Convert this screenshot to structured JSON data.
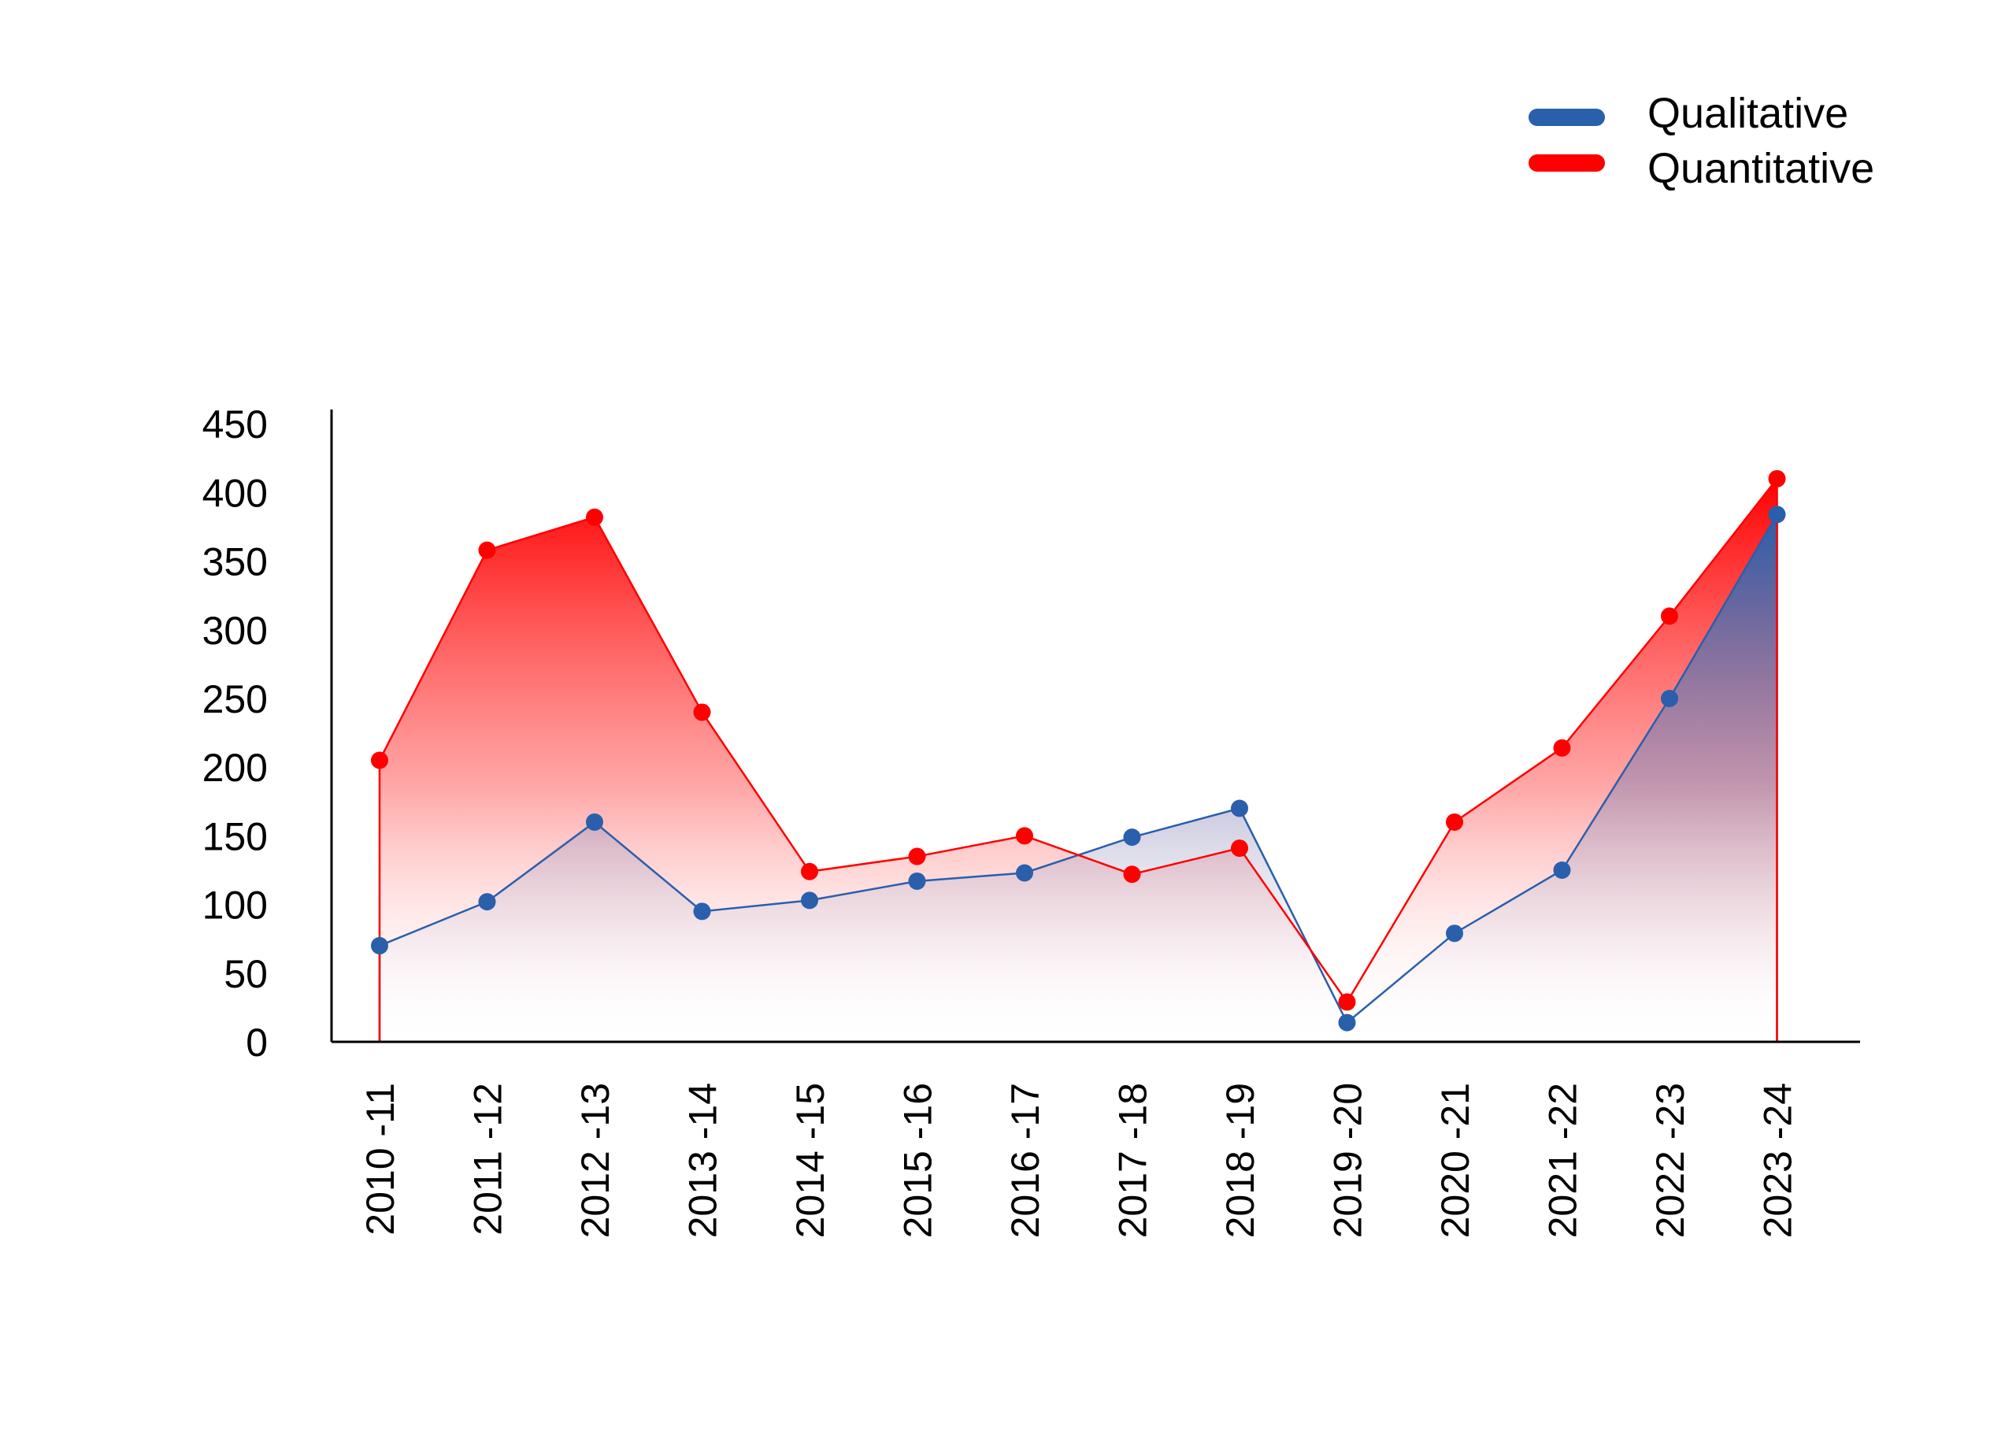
{
  "chart_data": {
    "type": "area",
    "categories": [
      "2010 -11",
      "2011 -12",
      "2012 -13",
      "2013 -14",
      "2014 -15",
      "2015 -16",
      "2016 -17",
      "2017 -18",
      "2018 -19",
      "2019 -20",
      "2020 -21",
      "2021 -22",
      "2022 -23",
      "2023 -24"
    ],
    "series": [
      {
        "name": "Qualitative",
        "color": "#2a5fac",
        "values": [
          70,
          102,
          160,
          95,
          103,
          117,
          123,
          149,
          170,
          14,
          79,
          125,
          250,
          384
        ]
      },
      {
        "name": "Quantitative",
        "color": "#ff0000",
        "values": [
          205,
          358,
          382,
          240,
          124,
          135,
          150,
          122,
          141,
          29,
          160,
          214,
          310,
          410
        ]
      }
    ],
    "yticks": [
      "0",
      "50",
      "100",
      "150",
      "200",
      "250",
      "300",
      "350",
      "400",
      "450"
    ],
    "ylim": [
      0,
      460
    ],
    "grid": false,
    "legend_position": "top-right"
  }
}
